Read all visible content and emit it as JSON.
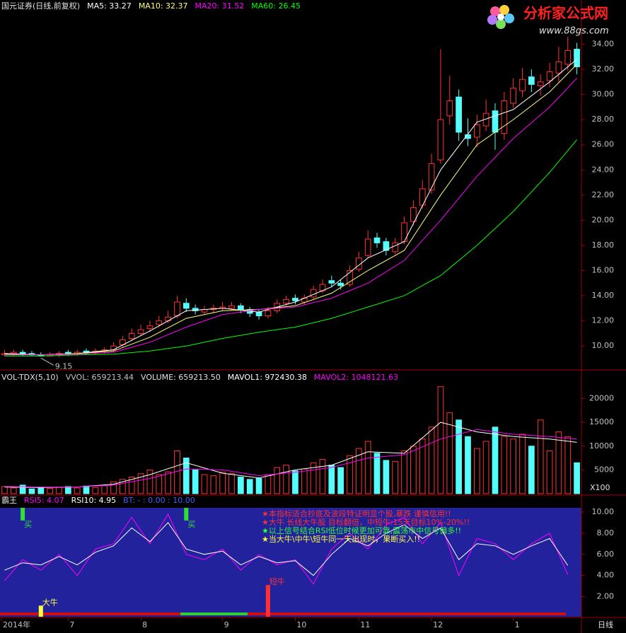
{
  "logo": {
    "name": "分析家公式网",
    "url": "www.88gs.com"
  },
  "chart_data": [
    {
      "type": "candlestick",
      "title": "国元证券(日线,前复权)",
      "open": [
        9.3,
        9.4,
        9.5,
        9.4,
        9.3,
        9.2,
        9.3,
        9.5,
        9.4,
        9.6,
        9.5,
        9.6,
        9.7,
        10.1,
        10.6,
        11.0,
        11.4,
        11.7,
        12.0,
        12.4,
        13.4,
        13.0,
        12.7,
        12.9,
        13.0,
        13.0,
        13.2,
        12.9,
        12.7,
        12.4,
        12.8,
        13.4,
        13.8,
        13.5,
        13.9,
        14.4,
        15.2,
        15.0,
        14.9,
        16.1,
        17.2,
        18.6,
        18.3,
        17.5,
        18.3,
        19.9,
        21.2,
        22.4,
        24.8,
        28.3,
        29.8,
        26.8,
        26.6,
        27.5,
        28.7,
        26.9,
        29.3,
        30.3,
        31.4,
        30.7,
        31.1,
        31.7,
        32.4,
        33.6
      ],
      "high": [
        9.7,
        9.7,
        9.7,
        9.6,
        9.5,
        9.5,
        9.6,
        9.7,
        9.7,
        9.8,
        9.8,
        9.9,
        10.3,
        10.8,
        11.4,
        11.7,
        12.0,
        12.4,
        12.8,
        14.0,
        13.8,
        13.3,
        13.2,
        13.3,
        13.5,
        13.5,
        13.4,
        13.1,
        12.9,
        13.1,
        13.7,
        14.0,
        14.1,
        14.1,
        14.8,
        15.3,
        15.6,
        15.3,
        16.4,
        17.5,
        19.2,
        19.0,
        18.6,
        18.6,
        20.3,
        21.6,
        23.2,
        25.3,
        33.6,
        31.5,
        30.4,
        28.1,
        28.4,
        29.6,
        29.3,
        30.2,
        31.3,
        32.1,
        32.0,
        31.6,
        32.5,
        33.8,
        34.6,
        34.1
      ],
      "low": [
        9.2,
        9.2,
        9.2,
        9.2,
        9.15,
        9.2,
        9.1,
        9.2,
        9.2,
        9.3,
        9.3,
        9.4,
        9.5,
        9.9,
        10.4,
        10.8,
        11.1,
        11.5,
        11.8,
        12.2,
        12.7,
        12.5,
        12.5,
        12.6,
        12.8,
        12.8,
        12.6,
        12.3,
        12.1,
        12.2,
        12.6,
        13.2,
        13.3,
        13.3,
        13.7,
        14.2,
        14.7,
        14.5,
        14.7,
        15.9,
        17.0,
        17.8,
        17.2,
        17.3,
        18.1,
        19.6,
        20.9,
        22.1,
        24.5,
        27.6,
        26.3,
        25.9,
        25.8,
        27.1,
        25.6,
        26.4,
        28.9,
        29.8,
        30.2,
        29.9,
        30.6,
        31.0,
        31.9,
        31.6
      ],
      "close": [
        9.4,
        9.5,
        9.4,
        9.3,
        9.2,
        9.3,
        9.4,
        9.4,
        9.5,
        9.5,
        9.6,
        9.7,
        10.0,
        10.5,
        11.0,
        11.3,
        11.6,
        12.0,
        12.3,
        13.5,
        13.0,
        12.8,
        12.9,
        13.0,
        13.1,
        13.2,
        12.9,
        12.6,
        12.4,
        12.8,
        13.4,
        13.7,
        13.6,
        13.8,
        14.5,
        14.9,
        15.0,
        14.8,
        16.0,
        17.0,
        18.5,
        18.2,
        17.6,
        18.2,
        19.8,
        21.0,
        22.5,
        24.5,
        28.0,
        29.5,
        27.0,
        26.5,
        27.6,
        28.5,
        27.0,
        29.5,
        30.5,
        31.2,
        30.8,
        31.0,
        31.8,
        32.6,
        33.5,
        32.2
      ],
      "up_color": "#ff3232",
      "down_color": "#54fcfc",
      "ma_x": [
        0,
        4,
        8,
        12,
        16,
        20,
        24,
        28,
        32,
        36,
        40,
        44,
        48,
        52,
        56,
        60,
        63
      ],
      "series": [
        {
          "name": "MA5: 33.27",
          "color": "#ffffff",
          "values": [
            9.4,
            9.3,
            9.4,
            9.7,
            11.2,
            12.8,
            13.0,
            12.7,
            13.5,
            14.7,
            17.0,
            18.3,
            24.0,
            27.8,
            28.8,
            31.0,
            32.8
          ]
        },
        {
          "name": "MA10: 32.37",
          "color": "#ffff80",
          "values": [
            9.35,
            9.3,
            9.4,
            9.6,
            10.7,
            12.2,
            12.8,
            12.9,
            13.2,
            14.2,
            16.0,
            17.6,
            22.0,
            26.0,
            28.0,
            30.2,
            32.4
          ]
        },
        {
          "name": "MA20: 31.52",
          "color": "#ff00ff",
          "values": [
            9.3,
            9.3,
            9.35,
            9.5,
            10.3,
            11.5,
            12.5,
            12.9,
            13.1,
            13.8,
            15.0,
            16.8,
            20.0,
            23.5,
            26.5,
            29.0,
            31.3
          ]
        },
        {
          "name": "MA60: 26.45",
          "color": "#00ff00",
          "values": [
            9.2,
            9.2,
            9.3,
            9.35,
            9.6,
            10.0,
            10.6,
            11.1,
            11.5,
            12.2,
            13.1,
            14.0,
            15.6,
            18.0,
            20.7,
            23.8,
            26.4
          ]
        }
      ],
      "low_label": {
        "value": 9.15,
        "label": "9.15"
      },
      "ylim": [
        8.1,
        36.5
      ],
      "yticks": [
        {
          "value": 10,
          "label": "10.00"
        },
        {
          "value": 12,
          "label": "12.00"
        },
        {
          "value": 14,
          "label": "14.00"
        },
        {
          "value": 16,
          "label": "16.00"
        },
        {
          "value": 18,
          "label": "18.00"
        },
        {
          "value": 20,
          "label": "20.00"
        },
        {
          "value": 22,
          "label": "22.00"
        },
        {
          "value": 24,
          "label": "24.00"
        },
        {
          "value": 26,
          "label": "26.00"
        },
        {
          "value": 28,
          "label": "28.00"
        },
        {
          "value": 30,
          "label": "30.00"
        },
        {
          "value": 32,
          "label": "32.00"
        },
        {
          "value": 34,
          "label": "34.00"
        }
      ]
    },
    {
      "type": "bar",
      "title": "VOL-TDX(5,10)",
      "title_items": [
        {
          "text": "VVOL: 659213.44",
          "color": "#c0c0c0"
        }
      ],
      "values": [
        1500,
        1200,
        1800,
        1000,
        1300,
        1100,
        1400,
        1500,
        1200,
        1600,
        1300,
        1700,
        2500,
        3000,
        3500,
        4200,
        5000,
        4000,
        4600,
        9000,
        7500,
        5000,
        4000,
        3800,
        4500,
        4200,
        3500,
        3000,
        3200,
        4000,
        5500,
        6000,
        4800,
        5200,
        6500,
        7200,
        6000,
        5500,
        8000,
        9500,
        11000,
        8500,
        7000,
        6800,
        9000,
        10000,
        11500,
        14000,
        22500,
        17000,
        15500,
        12000,
        9500,
        11000,
        14000,
        12000,
        11500,
        12500,
        10000,
        15500,
        9000,
        13000,
        12000,
        6500
      ],
      "values_name": "VOLUME: 659213.50",
      "up_color": "#ff3232",
      "down_color": "#54fcfc",
      "ma_x": [
        0,
        4,
        8,
        12,
        16,
        20,
        24,
        28,
        32,
        36,
        40,
        44,
        48,
        52,
        56,
        60,
        63
      ],
      "series": [
        {
          "name": "MAVOL1: 972430.38",
          "color": "#ffffff",
          "values": [
            1400,
            1300,
            1400,
            2000,
            4000,
            6500,
            4300,
            3300,
            5000,
            6000,
            8800,
            8500,
            15000,
            13000,
            12000,
            11500,
            10800
          ]
        },
        {
          "name": "MAVOL2: 1048121.63",
          "color": "#ff00ff",
          "values": [
            1500,
            1400,
            1400,
            1800,
            3200,
            5200,
            5000,
            3800,
            4500,
            5500,
            7500,
            8200,
            11500,
            13500,
            12500,
            12000,
            11500
          ]
        }
      ],
      "unit": "X100",
      "ylim": [
        0,
        23500
      ],
      "yticks": [
        5000,
        10000,
        15000,
        20000
      ]
    },
    {
      "type": "line",
      "title": "霸王",
      "x": [
        0,
        2,
        4,
        6,
        8,
        10,
        12,
        14,
        16,
        18,
        20,
        22,
        24,
        26,
        28,
        30,
        32,
        34,
        36,
        38,
        40,
        42,
        44,
        46,
        48,
        50,
        52,
        54,
        56,
        58,
        60,
        62
      ],
      "series": [
        {
          "name": "RSI5: 4.07",
          "color": "#ff00ff",
          "values": [
            3.5,
            5.5,
            4.5,
            6.0,
            4.0,
            6.5,
            7.0,
            9.5,
            7.0,
            9.8,
            6.0,
            5.5,
            6.5,
            4.5,
            6.0,
            5.0,
            5.5,
            3.2,
            6.5,
            8.0,
            6.5,
            8.8,
            9.5,
            7.0,
            9.0,
            4.0,
            7.5,
            7.0,
            5.5,
            7.0,
            8.0,
            4.07
          ]
        },
        {
          "name": "RSI10: 4.95",
          "color": "#ffffff",
          "values": [
            4.5,
            5.2,
            5.0,
            5.8,
            5.0,
            6.2,
            6.8,
            8.5,
            7.2,
            9.0,
            6.5,
            6.0,
            6.3,
            5.0,
            5.8,
            5.2,
            5.4,
            4.0,
            6.0,
            7.5,
            6.8,
            8.0,
            8.8,
            7.5,
            8.5,
            5.5,
            7.0,
            6.8,
            6.0,
            6.8,
            7.5,
            4.95
          ]
        }
      ],
      "extra_label": "BT: - : 0.00 : 10.00",
      "notes": [
        {
          "text": "★本指标适合抄底及波段特证明显个股,暴跌 谨慎信用!!",
          "color": "#ff3030"
        },
        {
          "text": "★大牛 长线大牛股 目标翻倍，中短牛:15天目标10%-20%!!",
          "color": "#ff3030"
        },
        {
          "text": "★以上信号结合RSI低位时候更加可靠,震荡市中信号偏多!!",
          "color": "#30ff30"
        },
        {
          "text": "★当大牛\\中牛\\短牛同一天出现时，果断买入!!",
          "color": "#ffff40"
        }
      ],
      "signals": {
        "x": [
          2,
          20,
          4,
          29
        ],
        "y": [
          9.2,
          9.2,
          1.15,
          3.1
        ],
        "labels": [
          "买",
          "买",
          "大牛",
          "短牛"
        ],
        "colors": [
          "#30e030",
          "#30e030",
          "#ffff40",
          "#ff3030"
        ]
      },
      "categories": [
        "2014年",
        null,
        null,
        null,
        null,
        null,
        null,
        "7",
        null,
        null,
        null,
        null,
        null,
        null,
        null,
        "8",
        null,
        null,
        null,
        null,
        null,
        null,
        null,
        null,
        "9",
        null,
        null,
        null,
        null,
        null,
        null,
        null,
        "10",
        null,
        null,
        null,
        null,
        null,
        null,
        "11",
        null,
        null,
        null,
        null,
        null,
        null,
        null,
        "12",
        null,
        null,
        null,
        null,
        null,
        null,
        null,
        null,
        "1",
        null,
        null,
        null,
        null,
        null,
        null,
        null
      ],
      "x_label": "日线",
      "ylim": [
        0.1,
        10.4
      ],
      "yticks": [
        {
          "value": 2,
          "label": "2.00"
        },
        {
          "value": 4,
          "label": "4.00"
        },
        {
          "value": 6,
          "label": "6.00"
        },
        {
          "value": 8,
          "label": "8.00"
        },
        {
          "value": 10,
          "label": "10.00"
        }
      ]
    }
  ]
}
